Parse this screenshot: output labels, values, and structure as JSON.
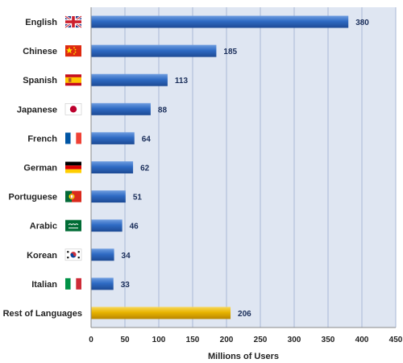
{
  "chart_data": {
    "type": "bar",
    "orientation": "horizontal",
    "title": "",
    "xlabel": "Millions of Users",
    "ylabel": "",
    "xlim": [
      0,
      450
    ],
    "x_ticks": [
      0,
      50,
      100,
      150,
      200,
      250,
      300,
      350,
      400,
      450
    ],
    "grid": "vertical",
    "categories": [
      "English",
      "Chinese",
      "Spanish",
      "Japanese",
      "French",
      "German",
      "Portuguese",
      "Arabic",
      "Korean",
      "Italian",
      "Rest of Languages"
    ],
    "values": [
      380,
      185,
      113,
      88,
      64,
      62,
      51,
      46,
      34,
      33,
      206
    ],
    "flags": [
      "uk-flag-icon",
      "china-flag-icon",
      "spain-flag-icon",
      "japan-flag-icon",
      "france-flag-icon",
      "germany-flag-icon",
      "portugal-flag-icon",
      "saudi-arabia-flag-icon",
      "south-korea-flag-icon",
      "italy-flag-icon",
      ""
    ],
    "colors": {
      "bar": "#2f6bc4",
      "bar_highlight": "#e8b400",
      "plot_background": "#dfe6f2",
      "grid": "#a9b8d6",
      "value_text": "#1a2e5a"
    }
  }
}
